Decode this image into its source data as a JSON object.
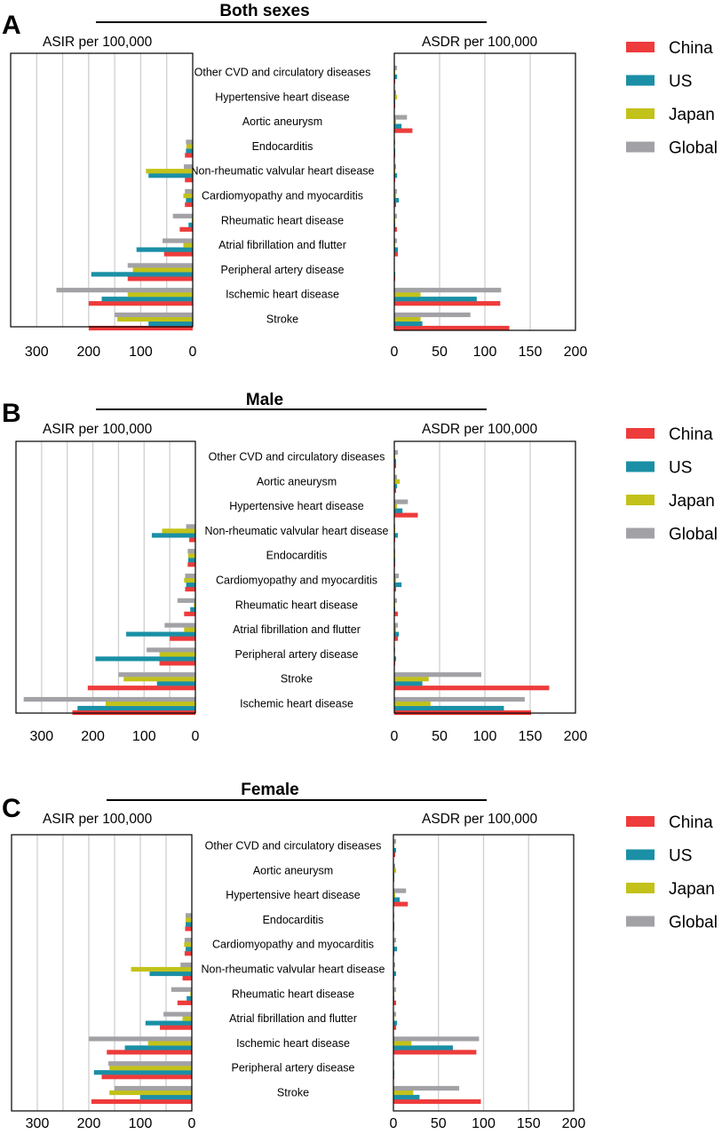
{
  "colors": {
    "China": "#ee3b3b",
    "US": "#1a8fa6",
    "Japan": "#c2c21a",
    "Global": "#a2a2a6",
    "grid": "#cfcfcf",
    "axis": "#000000"
  },
  "chart_data": [
    {
      "type": "bar",
      "panel_label": "A",
      "title": "Both sexes",
      "left_axis_label": "ASIR per 100,000",
      "right_axis_label": "ASDR per 100,000",
      "left_xlim": [
        0,
        350
      ],
      "left_ticks": [
        "300",
        "200",
        "100",
        "0"
      ],
      "left_tick_values": [
        300,
        200,
        100,
        0
      ],
      "right_xlim": [
        0,
        200
      ],
      "right_ticks": [
        "0",
        "50",
        "100",
        "150",
        "200"
      ],
      "right_tick_values": [
        0,
        50,
        100,
        150,
        200
      ],
      "legend": [
        "China",
        "US",
        "Japan",
        "Global"
      ],
      "categories": [
        "Other CVD and circulatory diseases",
        "Hypertensive heart disease",
        "Aortic aneurysm",
        "Endocarditis",
        "Non-rheumatic valvular heart disease",
        "Cardiomyopathy and myocarditis",
        "Rheumatic heart disease",
        "Atrial fibrillation and flutter",
        "Peripheral artery disease",
        "Ischemic heart disease",
        "Stroke"
      ],
      "asir_series": [
        {
          "name": "China",
          "values": [
            0,
            0,
            0,
            15,
            15,
            15,
            25,
            55,
            125,
            200,
            200
          ]
        },
        {
          "name": "US",
          "values": [
            0,
            0,
            0,
            13,
            85,
            13,
            8,
            108,
            195,
            175,
            85
          ]
        },
        {
          "name": "Japan",
          "values": [
            0,
            0,
            0,
            12,
            90,
            18,
            2,
            18,
            115,
            125,
            145
          ]
        },
        {
          "name": "Global",
          "values": [
            0,
            0,
            0,
            13,
            17,
            15,
            38,
            58,
            125,
            262,
            150
          ]
        }
      ],
      "asdr_series": [
        {
          "name": "China",
          "values": [
            1,
            1,
            20,
            1,
            1,
            2,
            3,
            4,
            1,
            117,
            127
          ]
        },
        {
          "name": "US",
          "values": [
            3,
            1,
            8,
            1,
            3,
            5,
            1,
            4,
            1,
            91,
            31
          ]
        },
        {
          "name": "Japan",
          "values": [
            1,
            3,
            2,
            0,
            1,
            2,
            1,
            1,
            0,
            29,
            29
          ]
        },
        {
          "name": "Global",
          "values": [
            3,
            2,
            14,
            1,
            2,
            3,
            3,
            3,
            0,
            118,
            84
          ]
        }
      ]
    },
    {
      "type": "bar",
      "panel_label": "B",
      "title": "Male",
      "left_axis_label": "ASIR per 100,000",
      "right_axis_label": "ASDR per 100,000",
      "left_xlim": [
        0,
        350
      ],
      "left_ticks": [
        "300",
        "200",
        "100",
        "0"
      ],
      "left_tick_values": [
        300,
        200,
        100,
        0
      ],
      "right_xlim": [
        0,
        200
      ],
      "right_ticks": [
        "0",
        "50",
        "100",
        "150",
        "200"
      ],
      "right_tick_values": [
        0,
        50,
        100,
        150,
        200
      ],
      "legend": [
        "China",
        "US",
        "Japan",
        "Global"
      ],
      "categories": [
        "Other CVD and circulatory diseases",
        "Aortic aneurysm",
        "Hypertensive heart disease",
        "Non-rheumatic valvular heart disease",
        "Endocarditis",
        "Cardiomyopathy and myocarditis",
        "Rheumatic heart disease",
        "Atrial fibrillation and flutter",
        "Peripheral artery disease",
        "Stroke",
        "Ischemic heart disease"
      ],
      "asir_series": [
        {
          "name": "China",
          "values": [
            0,
            0,
            0,
            12,
            15,
            20,
            22,
            50,
            70,
            210,
            240
          ]
        },
        {
          "name": "US",
          "values": [
            0,
            0,
            0,
            85,
            14,
            18,
            10,
            135,
            195,
            75,
            230
          ]
        },
        {
          "name": "Japan",
          "values": [
            0,
            0,
            0,
            65,
            14,
            22,
            3,
            22,
            70,
            140,
            175
          ]
        },
        {
          "name": "Global",
          "values": [
            0,
            0,
            0,
            18,
            15,
            20,
            35,
            60,
            95,
            150,
            335
          ]
        }
      ],
      "asdr_series": [
        {
          "name": "China",
          "values": [
            2,
            2,
            26,
            1,
            1,
            2,
            4,
            4,
            1,
            171,
            151
          ]
        },
        {
          "name": "US",
          "values": [
            2,
            3,
            9,
            4,
            1,
            8,
            1,
            5,
            2,
            31,
            121
          ]
        },
        {
          "name": "Japan",
          "values": [
            1,
            6,
            3,
            1,
            1,
            2,
            1,
            2,
            0,
            38,
            40
          ]
        },
        {
          "name": "Global",
          "values": [
            4,
            3,
            15,
            1,
            1,
            5,
            3,
            4,
            1,
            96,
            144
          ]
        }
      ]
    },
    {
      "type": "bar",
      "panel_label": "C",
      "title": "Female",
      "left_axis_label": "ASIR per 100,000",
      "right_axis_label": "ASDR per 100,000",
      "left_xlim": [
        0,
        350
      ],
      "left_ticks": [
        "300",
        "200",
        "100",
        "0"
      ],
      "left_tick_values": [
        300,
        200,
        100,
        0
      ],
      "right_xlim": [
        0,
        200
      ],
      "right_ticks": [
        "0",
        "50",
        "100",
        "150",
        "200"
      ],
      "right_tick_values": [
        0,
        50,
        100,
        150,
        200
      ],
      "legend": [
        "China",
        "US",
        "Japan",
        "Global"
      ],
      "categories": [
        "Other CVD and circulatory diseases",
        "Aortic aneurysm",
        "Hypertensive heart disease",
        "Endocarditis",
        "Cardiomyopathy and myocarditis",
        "Non-rheumatic valvular heart disease",
        "Rheumatic heart disease",
        "Atrial fibrillation and flutter",
        "Ischemic heart disease",
        "Peripheral artery disease",
        "Stroke"
      ],
      "asir_series": [
        {
          "name": "China",
          "values": [
            0,
            0,
            0,
            13,
            14,
            18,
            28,
            62,
            165,
            175,
            195
          ]
        },
        {
          "name": "US",
          "values": [
            0,
            0,
            0,
            12,
            12,
            82,
            10,
            90,
            130,
            190,
            100
          ]
        },
        {
          "name": "Japan",
          "values": [
            0,
            0,
            0,
            12,
            15,
            118,
            3,
            18,
            85,
            160,
            160
          ]
        },
        {
          "name": "Global",
          "values": [
            0,
            0,
            0,
            12,
            14,
            22,
            40,
            55,
            200,
            162,
            150
          ]
        }
      ],
      "asdr_series": [
        {
          "name": "China",
          "values": [
            2,
            1,
            16,
            1,
            1,
            1,
            3,
            3,
            92,
            1,
            97
          ]
        },
        {
          "name": "US",
          "values": [
            3,
            1,
            7,
            1,
            4,
            3,
            1,
            4,
            66,
            1,
            29
          ]
        },
        {
          "name": "Japan",
          "values": [
            1,
            3,
            2,
            0,
            1,
            1,
            1,
            1,
            20,
            0,
            22
          ]
        },
        {
          "name": "Global",
          "values": [
            3,
            2,
            14,
            1,
            3,
            2,
            3,
            3,
            95,
            1,
            73
          ]
        }
      ]
    }
  ]
}
